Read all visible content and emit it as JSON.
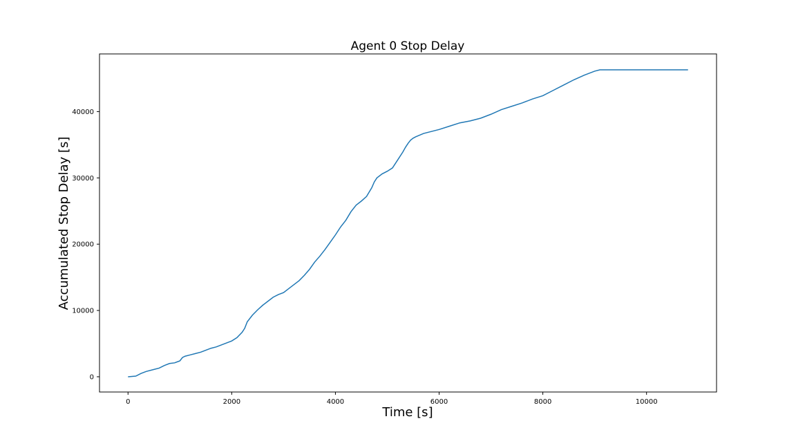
{
  "chart_data": {
    "type": "line",
    "title": "Agent 0 Stop Delay",
    "xlabel": "Time [s]",
    "ylabel": "Accumulated Stop Delay [s]",
    "xlim": [
      -550,
      11350
    ],
    "ylim": [
      -2300,
      48700
    ],
    "xticks": [
      0,
      2000,
      4000,
      6000,
      8000,
      10000
    ],
    "yticks": [
      0,
      10000,
      20000,
      30000,
      40000
    ],
    "grid": false,
    "line_color": "#1f77b4",
    "series": [
      {
        "x": [
          0,
          150,
          250,
          350,
          500,
          600,
          700,
          800,
          900,
          1000,
          1050,
          1100,
          1200,
          1300,
          1400,
          1500,
          1600,
          1700,
          1800,
          1900,
          2000,
          2100,
          2200,
          2250,
          2300,
          2400,
          2500,
          2600,
          2700,
          2800,
          2900,
          3000,
          3100,
          3200,
          3300,
          3400,
          3500,
          3600,
          3700,
          3800,
          3900,
          4000,
          4100,
          4200,
          4300,
          4400,
          4500,
          4600,
          4700,
          4750,
          4800,
          4900,
          5000,
          5100,
          5200,
          5300,
          5350,
          5400,
          5450,
          5500,
          5550,
          5700,
          6000,
          6200,
          6400,
          6600,
          6800,
          7000,
          7200,
          7400,
          7600,
          7800,
          8000,
          8200,
          8400,
          8600,
          8800,
          9000,
          9100,
          9300,
          10000,
          10800
        ],
        "y": [
          0,
          100,
          500,
          800,
          1100,
          1300,
          1700,
          2000,
          2100,
          2400,
          2900,
          3100,
          3300,
          3500,
          3700,
          4000,
          4300,
          4500,
          4800,
          5100,
          5400,
          5900,
          6700,
          7300,
          8300,
          9300,
          10100,
          10800,
          11400,
          12000,
          12400,
          12700,
          13300,
          13900,
          14500,
          15300,
          16200,
          17300,
          18200,
          19200,
          20300,
          21400,
          22600,
          23600,
          24900,
          25900,
          26500,
          27200,
          28500,
          29400,
          30000,
          30600,
          31000,
          31500,
          32700,
          33900,
          34600,
          35200,
          35700,
          36000,
          36200,
          36700,
          37300,
          37800,
          38300,
          38600,
          39000,
          39600,
          40300,
          40800,
          41300,
          41900,
          42400,
          43200,
          44000,
          44800,
          45500,
          46100,
          46300,
          46300,
          46300,
          46300
        ]
      }
    ]
  }
}
